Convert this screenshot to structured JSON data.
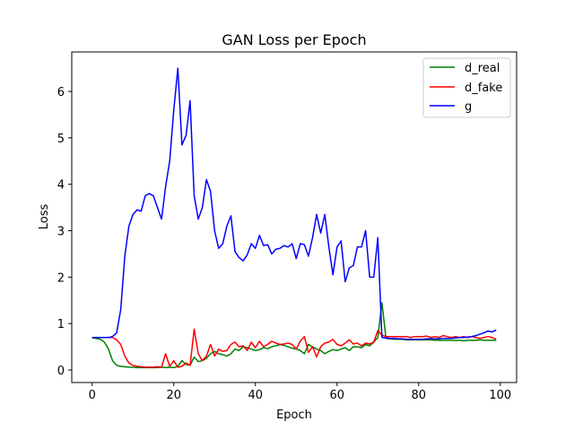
{
  "chart_data": {
    "type": "line",
    "title": "GAN Loss per Epoch",
    "xlabel": "Epoch",
    "ylabel": "Loss",
    "xlim": [
      -5,
      104
    ],
    "ylim": [
      -0.27,
      6.85
    ],
    "xticks": [
      0,
      20,
      40,
      60,
      80,
      100
    ],
    "yticks": [
      0,
      1,
      2,
      3,
      4,
      5,
      6
    ],
    "grid": false,
    "legend_position": "top-right",
    "x_start": 0,
    "series": [
      {
        "name": "d_real",
        "color": "#008000",
        "values": [
          0.69,
          0.68,
          0.66,
          0.6,
          0.45,
          0.2,
          0.1,
          0.08,
          0.07,
          0.06,
          0.06,
          0.05,
          0.05,
          0.05,
          0.05,
          0.05,
          0.05,
          0.06,
          0.05,
          0.06,
          0.05,
          0.08,
          0.2,
          0.12,
          0.1,
          0.28,
          0.18,
          0.2,
          0.25,
          0.35,
          0.4,
          0.35,
          0.33,
          0.3,
          0.35,
          0.45,
          0.42,
          0.5,
          0.48,
          0.45,
          0.42,
          0.44,
          0.48,
          0.46,
          0.5,
          0.52,
          0.55,
          0.53,
          0.5,
          0.47,
          0.45,
          0.42,
          0.35,
          0.55,
          0.5,
          0.45,
          0.42,
          0.35,
          0.4,
          0.44,
          0.42,
          0.45,
          0.48,
          0.42,
          0.5,
          0.5,
          0.48,
          0.55,
          0.52,
          0.6,
          0.7,
          1.45,
          0.68,
          0.67,
          0.66,
          0.66,
          0.66,
          0.65,
          0.65,
          0.65,
          0.65,
          0.65,
          0.65,
          0.65,
          0.64,
          0.64,
          0.64,
          0.64,
          0.64,
          0.64,
          0.64,
          0.63,
          0.64,
          0.64,
          0.64,
          0.65,
          0.64,
          0.64,
          0.64,
          0.64
        ]
      },
      {
        "name": "d_fake",
        "color": "#ff0000",
        "values": [
          0.7,
          0.7,
          0.7,
          0.7,
          0.7,
          0.7,
          0.65,
          0.55,
          0.3,
          0.15,
          0.1,
          0.08,
          0.07,
          0.06,
          0.06,
          0.06,
          0.07,
          0.06,
          0.35,
          0.08,
          0.2,
          0.06,
          0.08,
          0.15,
          0.1,
          0.88,
          0.35,
          0.2,
          0.3,
          0.55,
          0.3,
          0.45,
          0.4,
          0.42,
          0.55,
          0.6,
          0.5,
          0.52,
          0.42,
          0.6,
          0.48,
          0.62,
          0.5,
          0.55,
          0.62,
          0.58,
          0.55,
          0.56,
          0.58,
          0.55,
          0.45,
          0.62,
          0.72,
          0.38,
          0.5,
          0.28,
          0.5,
          0.58,
          0.6,
          0.66,
          0.55,
          0.52,
          0.58,
          0.65,
          0.56,
          0.58,
          0.52,
          0.58,
          0.56,
          0.6,
          0.85,
          0.75,
          0.72,
          0.72,
          0.72,
          0.72,
          0.72,
          0.72,
          0.7,
          0.72,
          0.72,
          0.72,
          0.73,
          0.7,
          0.72,
          0.7,
          0.74,
          0.72,
          0.7,
          0.72,
          0.7,
          0.72,
          0.7,
          0.72,
          0.7,
          0.68,
          0.7,
          0.72,
          0.7,
          0.66
        ]
      },
      {
        "name": "g",
        "color": "#0000ff",
        "values": [
          0.7,
          0.7,
          0.7,
          0.7,
          0.7,
          0.72,
          0.8,
          1.3,
          2.45,
          3.1,
          3.35,
          3.45,
          3.42,
          3.75,
          3.8,
          3.75,
          3.5,
          3.25,
          3.95,
          4.5,
          5.6,
          6.5,
          4.85,
          5.05,
          5.8,
          3.75,
          3.25,
          3.5,
          4.1,
          3.85,
          3.0,
          2.62,
          2.72,
          3.1,
          3.32,
          2.55,
          2.42,
          2.35,
          2.48,
          2.72,
          2.62,
          2.9,
          2.68,
          2.7,
          2.5,
          2.6,
          2.62,
          2.68,
          2.65,
          2.72,
          2.4,
          2.72,
          2.7,
          2.45,
          2.85,
          3.35,
          2.95,
          3.35,
          2.65,
          2.05,
          2.65,
          2.78,
          1.9,
          2.2,
          2.25,
          2.65,
          2.65,
          3.0,
          2.0,
          2.0,
          2.85,
          0.7,
          0.69,
          0.68,
          0.68,
          0.67,
          0.67,
          0.66,
          0.66,
          0.66,
          0.66,
          0.66,
          0.67,
          0.67,
          0.67,
          0.67,
          0.68,
          0.68,
          0.68,
          0.69,
          0.7,
          0.7,
          0.71,
          0.72,
          0.74,
          0.77,
          0.8,
          0.84,
          0.82,
          0.86
        ]
      }
    ]
  }
}
